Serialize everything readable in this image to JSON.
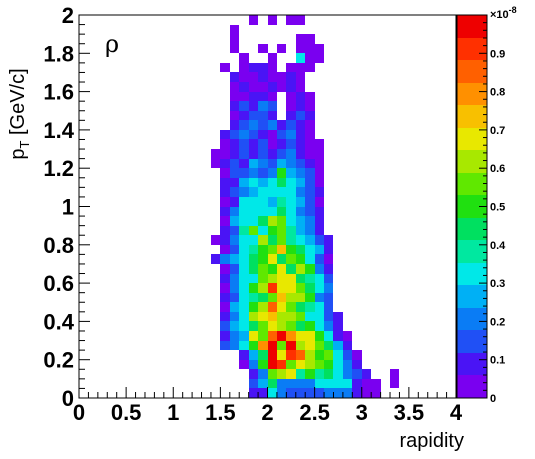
{
  "chart_data": {
    "type": "heatmap",
    "title": "ρ",
    "xlabel": "rapidity",
    "ylabel_main": "p",
    "ylabel_sub": "T",
    "ylabel_unit": " [GeV/c]",
    "xlim": [
      0,
      4
    ],
    "ylim": [
      0,
      2
    ],
    "x_bin_width": 0.1,
    "y_bin_width": 0.05,
    "x_tick_labels": [
      "0",
      "0.5",
      "1",
      "1.5",
      "2",
      "2.5",
      "3",
      "3.5",
      "4"
    ],
    "y_tick_labels": [
      "0",
      "0.2",
      "0.4",
      "0.6",
      "0.8",
      "1",
      "1.2",
      "1.4",
      "1.6",
      "1.8",
      "2"
    ],
    "z_range": [
      0,
      1
    ],
    "z_multiplier": "×10",
    "z_exponent": "-8",
    "z_tick_labels": [
      "0",
      "0.1",
      "0.2",
      "0.3",
      "0.4",
      "0.5",
      "0.6",
      "0.7",
      "0.8",
      "0.9"
    ],
    "palette": [
      "#7a00f0",
      "#4a14f5",
      "#2050f5",
      "#0a7cf5",
      "#00b0f5",
      "#00e8e8",
      "#00e8a0",
      "#00e060",
      "#20e010",
      "#60e800",
      "#a8e800",
      "#e8e800",
      "#f8c000",
      "#ff9000",
      "#ff6000",
      "#ff3000",
      "#ee0000"
    ],
    "rows": [
      {
        "y": 0.0,
        "x0": 1.8,
        "z": [
          0.1,
          0.1,
          0.35,
          0.2,
          0.15,
          0.15,
          0.15,
          0.15,
          0.2,
          0.2,
          0.2,
          0.1,
          0.05,
          0.05,
          0.0,
          0.0,
          0.0
        ]
      },
      {
        "y": 0.05,
        "x0": 1.8,
        "z": [
          0.15,
          0.25,
          0.45,
          0.2,
          0.2,
          0.2,
          0.2,
          0.3,
          0.3,
          0.3,
          0.3,
          0.1,
          0.05,
          0.05,
          0.0,
          0.05,
          0.0
        ]
      },
      {
        "y": 0.1,
        "x0": 1.8,
        "z": [
          0.1,
          0.2,
          0.55,
          0.6,
          0.65,
          0.4,
          0.5,
          0.4,
          0.45,
          0.3,
          0.2,
          0.15,
          0.1,
          0.0,
          0.0,
          0.05,
          0.0
        ]
      },
      {
        "y": 0.15,
        "x0": 1.7,
        "z": [
          0.05,
          0.2,
          0.5,
          0.95,
          0.9,
          0.55,
          0.7,
          0.6,
          0.55,
          0.5,
          0.35,
          0.2,
          0.1,
          0.0,
          0.0
        ]
      },
      {
        "y": 0.2,
        "x0": 1.7,
        "z": [
          0.1,
          0.25,
          0.45,
          0.95,
          0.65,
          0.9,
          0.85,
          0.6,
          0.5,
          0.55,
          0.3,
          0.15,
          0.05
        ]
      },
      {
        "y": 0.25,
        "x0": 1.5,
        "z": [
          0.15,
          0.2,
          0.3,
          0.5,
          0.8,
          0.95,
          0.55,
          0.95,
          0.6,
          0.7,
          0.55,
          0.45,
          0.25,
          0.1
        ]
      },
      {
        "y": 0.3,
        "x0": 1.5,
        "z": [
          0.1,
          0.2,
          0.25,
          0.7,
          0.55,
          0.85,
          0.95,
          0.8,
          0.65,
          0.65,
          0.5,
          0.35,
          0.1,
          0.05
        ]
      },
      {
        "y": 0.35,
        "x0": 1.5,
        "z": [
          0.15,
          0.25,
          0.35,
          0.45,
          0.55,
          0.65,
          0.6,
          0.55,
          0.45,
          0.5,
          0.35,
          0.2,
          0.1
        ]
      },
      {
        "y": 0.4,
        "x0": 1.5,
        "z": [
          0.1,
          0.2,
          0.3,
          0.6,
          0.7,
          0.75,
          0.6,
          0.6,
          0.55,
          0.35,
          0.3,
          0.15,
          0.1
        ]
      },
      {
        "y": 0.45,
        "x0": 1.5,
        "z": [
          0.05,
          0.25,
          0.3,
          0.5,
          0.6,
          0.85,
          0.7,
          0.55,
          0.45,
          0.4,
          0.35,
          0.15
        ]
      },
      {
        "y": 0.5,
        "x0": 1.5,
        "z": [
          0.1,
          0.15,
          0.35,
          0.4,
          0.45,
          0.55,
          0.75,
          0.6,
          0.6,
          0.5,
          0.2,
          0.15
        ]
      },
      {
        "y": 0.55,
        "x0": 1.5,
        "z": [
          0.05,
          0.2,
          0.3,
          0.5,
          0.6,
          0.9,
          0.7,
          0.65,
          0.55,
          0.45,
          0.35,
          0.2
        ]
      },
      {
        "y": 0.6,
        "x0": 1.5,
        "z": [
          0.1,
          0.2,
          0.35,
          0.35,
          0.55,
          0.6,
          0.7,
          0.65,
          0.45,
          0.4,
          0.3,
          0.15
        ]
      },
      {
        "y": 0.65,
        "x0": 1.5,
        "z": [
          0.05,
          0.15,
          0.3,
          0.45,
          0.55,
          0.5,
          0.7,
          0.45,
          0.6,
          0.5,
          0.2,
          0.1
        ]
      },
      {
        "y": 0.7,
        "x0": 1.4,
        "z": [
          0.1,
          0.2,
          0.25,
          0.3,
          0.45,
          0.5,
          0.65,
          0.45,
          0.55,
          0.5,
          0.3,
          0.15,
          0.05
        ]
      },
      {
        "y": 0.75,
        "x0": 1.5,
        "z": [
          0.05,
          0.15,
          0.35,
          0.4,
          0.5,
          0.55,
          0.75,
          0.5,
          0.45,
          0.35,
          0.25,
          0.1
        ]
      },
      {
        "y": 0.8,
        "x0": 1.4,
        "z": [
          0.05,
          0.1,
          0.2,
          0.3,
          0.35,
          0.6,
          0.45,
          0.55,
          0.4,
          0.3,
          0.25,
          0.15,
          0.1
        ]
      },
      {
        "y": 0.85,
        "x0": 1.5,
        "z": [
          0.1,
          0.15,
          0.4,
          0.55,
          0.35,
          0.5,
          0.55,
          0.4,
          0.25,
          0.2,
          0.1
        ]
      },
      {
        "y": 0.9,
        "x0": 1.5,
        "z": [
          0.05,
          0.25,
          0.3,
          0.35,
          0.45,
          0.6,
          0.55,
          0.3,
          0.25,
          0.2,
          0.1
        ]
      },
      {
        "y": 0.95,
        "x0": 1.5,
        "z": [
          0.1,
          0.2,
          0.3,
          0.3,
          0.35,
          0.35,
          0.45,
          0.35,
          0.2,
          0.15,
          0.1
        ]
      },
      {
        "y": 1.0,
        "x0": 1.5,
        "z": [
          0.05,
          0.1,
          0.3,
          0.3,
          0.35,
          0.25,
          0.4,
          0.3,
          0.25,
          0.15,
          0.05
        ]
      },
      {
        "y": 1.05,
        "x0": 1.5,
        "z": [
          0.1,
          0.15,
          0.2,
          0.25,
          0.3,
          0.35,
          0.3,
          0.35,
          0.2,
          0.15,
          0.1
        ]
      },
      {
        "y": 1.1,
        "x0": 1.5,
        "z": [
          0.1,
          0.1,
          0.25,
          0.3,
          0.25,
          0.3,
          0.45,
          0.35,
          0.25,
          0.15,
          0.05
        ]
      },
      {
        "y": 1.15,
        "x0": 1.5,
        "z": [
          0.05,
          0.15,
          0.15,
          0.2,
          0.15,
          0.2,
          0.5,
          0.25,
          0.2,
          0.15,
          0.05
        ]
      },
      {
        "y": 1.2,
        "x0": 1.4,
        "z": [
          0.05,
          0.1,
          0.15,
          0.1,
          0.25,
          0.2,
          0.15,
          0.25,
          0.2,
          0.15,
          0.1,
          0.05
        ]
      },
      {
        "y": 1.25,
        "x0": 1.4,
        "z": [
          0.05,
          0.05,
          0.1,
          0.15,
          0.1,
          0.15,
          0.1,
          0.15,
          0.2,
          0.1,
          0.05,
          0.05
        ]
      },
      {
        "y": 1.3,
        "x0": 1.5,
        "z": [
          0.05,
          0.1,
          0.15,
          0.1,
          0.15,
          0.05,
          0.1,
          0.15,
          0.1,
          0.05,
          0.05
        ]
      },
      {
        "y": 1.35,
        "x0": 1.5,
        "z": [
          0.1,
          0.15,
          0.2,
          0.15,
          0.1,
          0.05,
          0.15,
          0.2,
          0.1,
          0.05
        ]
      },
      {
        "y": 1.4,
        "x0": 1.6,
        "z": [
          0.1,
          0.15,
          0.2,
          0.15,
          0.2,
          0.1,
          0.15,
          0.1,
          0.05
        ]
      },
      {
        "y": 1.45,
        "x0": 1.6,
        "z": [
          0.05,
          0.1,
          0.15,
          0.15,
          0.1,
          0.0,
          0.1,
          0.15,
          0.1
        ]
      },
      {
        "y": 1.5,
        "x0": 1.6,
        "z": [
          0.1,
          0.15,
          0.1,
          0.2,
          0.15,
          0.0,
          0.05,
          0.1,
          0.05
        ]
      },
      {
        "y": 1.55,
        "x0": 1.6,
        "z": [
          0.05,
          0.05,
          0.1,
          0.1,
          0.05,
          0.0,
          0.05,
          0.1,
          0.05
        ]
      },
      {
        "y": 1.6,
        "x0": 1.6,
        "z": [
          0.05,
          0.1,
          0.05,
          0.05,
          0.1,
          0.05,
          0.1,
          0.05
        ]
      },
      {
        "y": 1.65,
        "x0": 1.6,
        "z": [
          0.1,
          0.05,
          0.05,
          0.1,
          0.05,
          0.05,
          0.1,
          0.05
        ]
      },
      {
        "y": 1.7,
        "x0": 1.5,
        "z": [
          0.05,
          0.0,
          0.05,
          0.1,
          0.1,
          0.05,
          0.0,
          0.05,
          0.05,
          0.05
        ]
      },
      {
        "y": 1.75,
        "x0": 1.7,
        "z": [
          0.05,
          0.0,
          0.0,
          0.05,
          0.0,
          0.0,
          0.3,
          0.05,
          0.05
        ]
      },
      {
        "y": 1.8,
        "x0": 1.6,
        "z": [
          0.05,
          0.0,
          0.0,
          0.05,
          0.0,
          0.05,
          0.0,
          0.05,
          0.05,
          0.05
        ]
      },
      {
        "y": 1.85,
        "x0": 1.6,
        "z": [
          0.05,
          0.0,
          0.0,
          0.0,
          0.0,
          0.0,
          0.0,
          0.05,
          0.05
        ]
      },
      {
        "y": 1.9,
        "x0": 1.6,
        "z": [
          0.05
        ]
      },
      {
        "y": 1.95,
        "x0": 1.8,
        "z": [
          0.05,
          0.0,
          0.05,
          0.0,
          0.05,
          0.05
        ]
      }
    ]
  }
}
